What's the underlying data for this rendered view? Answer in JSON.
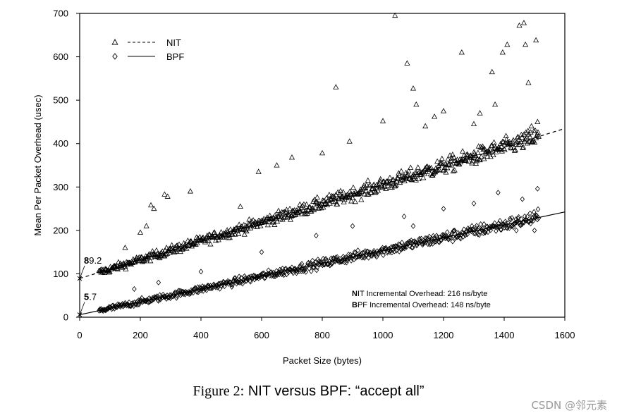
{
  "chart_data": {
    "type": "scatter",
    "title": "",
    "xlabel": "Packet Size (bytes)",
    "ylabel": "Mean Per Packet Overhead (usec)",
    "xlim": [
      0,
      1600
    ],
    "ylim": [
      0,
      700
    ],
    "xticks": [
      0,
      200,
      400,
      600,
      800,
      1000,
      1200,
      1400,
      1600
    ],
    "yticks": [
      0,
      100,
      200,
      300,
      400,
      500,
      600,
      700
    ],
    "xtick_labels": [
      "0",
      "200",
      "400",
      "600",
      "800",
      "1000",
      "1200",
      "1400",
      "1600"
    ],
    "ytick_labels": [
      "0",
      "100",
      "200",
      "300",
      "400",
      "500",
      "600",
      "700"
    ],
    "grid": false,
    "legend_position": "top-left",
    "series": [
      {
        "name": "NIT",
        "marker": "triangle",
        "fit_line": "dashed",
        "intercept": 89.2,
        "slope": 0.216,
        "x_range": [
          64,
          1514
        ],
        "noise": 14,
        "outliers": [
          {
            "x": 115,
            "y": 115
          },
          {
            "x": 150,
            "y": 160
          },
          {
            "x": 200,
            "y": 195
          },
          {
            "x": 220,
            "y": 210
          },
          {
            "x": 235,
            "y": 258
          },
          {
            "x": 245,
            "y": 250
          },
          {
            "x": 280,
            "y": 283
          },
          {
            "x": 290,
            "y": 278
          },
          {
            "x": 365,
            "y": 290
          },
          {
            "x": 530,
            "y": 255
          },
          {
            "x": 590,
            "y": 335
          },
          {
            "x": 650,
            "y": 350
          },
          {
            "x": 700,
            "y": 368
          },
          {
            "x": 800,
            "y": 378
          },
          {
            "x": 845,
            "y": 530
          },
          {
            "x": 890,
            "y": 405
          },
          {
            "x": 1000,
            "y": 452
          },
          {
            "x": 1040,
            "y": 695
          },
          {
            "x": 1080,
            "y": 585
          },
          {
            "x": 1100,
            "y": 527
          },
          {
            "x": 1110,
            "y": 490
          },
          {
            "x": 1140,
            "y": 440
          },
          {
            "x": 1170,
            "y": 462
          },
          {
            "x": 1200,
            "y": 475
          },
          {
            "x": 1260,
            "y": 610
          },
          {
            "x": 1300,
            "y": 445
          },
          {
            "x": 1320,
            "y": 470
          },
          {
            "x": 1360,
            "y": 565
          },
          {
            "x": 1370,
            "y": 490
          },
          {
            "x": 1395,
            "y": 610
          },
          {
            "x": 1410,
            "y": 628
          },
          {
            "x": 1420,
            "y": 400
          },
          {
            "x": 1450,
            "y": 672
          },
          {
            "x": 1465,
            "y": 678
          },
          {
            "x": 1470,
            "y": 628
          },
          {
            "x": 1480,
            "y": 540
          },
          {
            "x": 1490,
            "y": 440
          },
          {
            "x": 1505,
            "y": 638
          },
          {
            "x": 1510,
            "y": 450
          }
        ]
      },
      {
        "name": "BPF",
        "marker": "diamond",
        "fit_line": "solid",
        "intercept": 5.7,
        "slope": 0.148,
        "x_range": [
          64,
          1514
        ],
        "noise": 10,
        "outliers": [
          {
            "x": 180,
            "y": 65
          },
          {
            "x": 260,
            "y": 80
          },
          {
            "x": 400,
            "y": 105
          },
          {
            "x": 600,
            "y": 150
          },
          {
            "x": 780,
            "y": 188
          },
          {
            "x": 900,
            "y": 210
          },
          {
            "x": 1070,
            "y": 232
          },
          {
            "x": 1100,
            "y": 210
          },
          {
            "x": 1200,
            "y": 250
          },
          {
            "x": 1300,
            "y": 262
          },
          {
            "x": 1380,
            "y": 287
          },
          {
            "x": 1460,
            "y": 272
          },
          {
            "x": 1510,
            "y": 296
          },
          {
            "x": 1500,
            "y": 200
          },
          {
            "x": 1440,
            "y": 200
          }
        ]
      }
    ],
    "annotations": [
      {
        "text": "89.2",
        "x": 0,
        "y": 89.2,
        "bold_first_letter": true
      },
      {
        "text": "5.7",
        "x": 0,
        "y": 5.7,
        "bold_first_letter": true
      },
      {
        "text": "NIT Incremental Overhead: 216 ns/byte",
        "bold_first_letter": true
      },
      {
        "text": "BPF Incremental Overhead: 148 ns/byte",
        "bold_first_letter": true
      }
    ]
  },
  "caption": {
    "prefix": "Figure 2:",
    "title": "NIT versus BPF: “accept all”"
  },
  "watermark": "CSDN @邻元素"
}
